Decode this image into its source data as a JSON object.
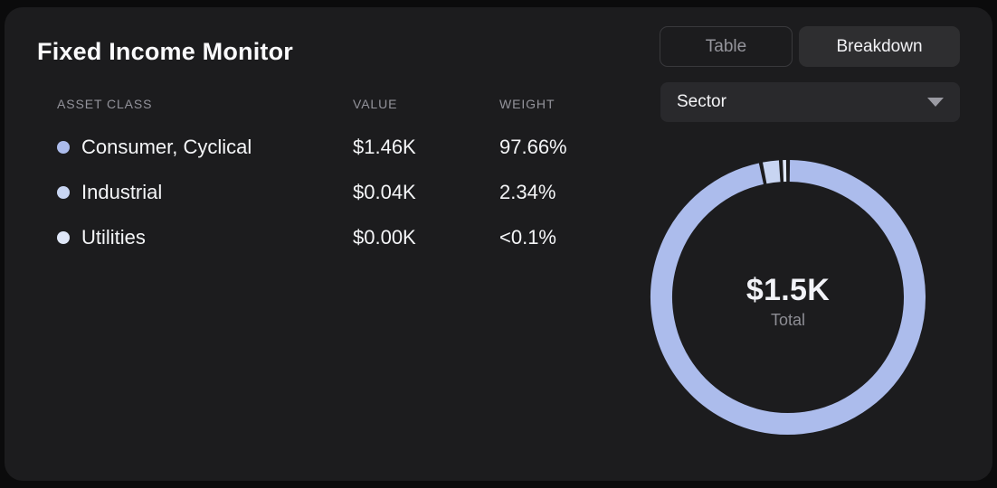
{
  "header": {
    "title": "Fixed Income Monitor"
  },
  "tabs": [
    {
      "label": "Table",
      "active": false
    },
    {
      "label": "Breakdown",
      "active": true
    }
  ],
  "dropdown": {
    "selected_value": "Sector"
  },
  "table": {
    "columns": [
      "ASSET CLASS",
      "VALUE",
      "WEIGHT"
    ],
    "rows": [
      {
        "asset_class": "Consumer, Cyclical",
        "value": "$1.46K",
        "weight": "97.66%",
        "color": "#acbcec"
      },
      {
        "asset_class": "Industrial",
        "value": "$0.04K",
        "weight": "2.34%",
        "color": "#c8d5f2"
      },
      {
        "asset_class": "Utilities",
        "value": "$0.00K",
        "weight": "<0.1%",
        "color": "#dfe7f8"
      }
    ]
  },
  "chart_data": {
    "type": "pie",
    "subtype": "donut",
    "categories": [
      "Consumer, Cyclical",
      "Industrial",
      "Utilities"
    ],
    "values": [
      97.66,
      2.34,
      0.1
    ],
    "display_values": [
      "$1.46K",
      "$0.04K",
      "$0.00K"
    ],
    "colors": [
      "#acbcec",
      "#c8d5f2",
      "#dfe7f8"
    ],
    "center": {
      "value": "$1.5K",
      "caption": "Total"
    },
    "title": "",
    "legend_position": "none"
  },
  "colors": {
    "page_bg": "#0b0b0c",
    "card_bg": "#1c1c1e",
    "active_tab_bg": "#2e2e30",
    "dropdown_bg": "#29292c",
    "muted_text": "#93939b",
    "accent_primary": "#acbcec"
  }
}
